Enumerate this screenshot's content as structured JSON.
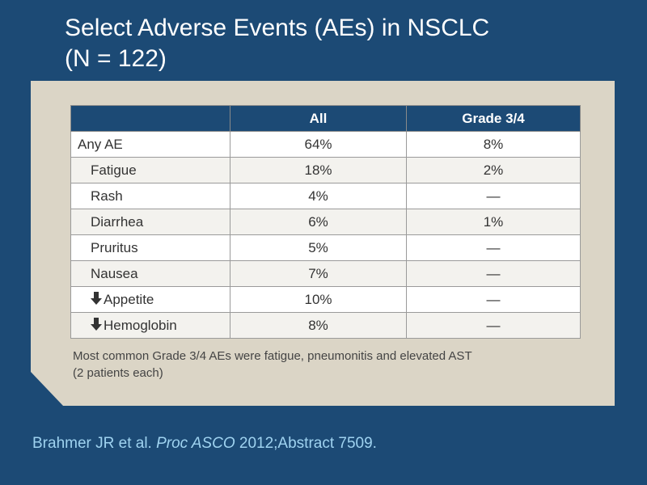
{
  "title": {
    "line1": "Select Adverse Events (AEs) in NSCLC",
    "line2": "(N = 122)"
  },
  "table": {
    "headers": [
      "",
      "All",
      "Grade 3/4"
    ],
    "rows": [
      {
        "label": "Any AE",
        "all": "64%",
        "grade34": "8%",
        "icon": ""
      },
      {
        "label": "Fatigue",
        "all": "18%",
        "grade34": "2%",
        "icon": ""
      },
      {
        "label": "Rash",
        "all": "4%",
        "grade34": "—",
        "icon": ""
      },
      {
        "label": "Diarrhea",
        "all": "6%",
        "grade34": "1%",
        "icon": ""
      },
      {
        "label": "Pruritus",
        "all": "5%",
        "grade34": "—",
        "icon": ""
      },
      {
        "label": "Nausea",
        "all": "7%",
        "grade34": "—",
        "icon": ""
      },
      {
        "label": "Appetite",
        "all": "10%",
        "grade34": "—",
        "icon": "decreased-arrow-icon"
      },
      {
        "label": "Hemoglobin",
        "all": "8%",
        "grade34": "—",
        "icon": "decreased-arrow-icon"
      }
    ]
  },
  "footnote": {
    "line1": "Most common Grade 3/4 AEs were fatigue, pneumonitis and elevated AST",
    "line2": "(2 patients each)"
  },
  "citation": {
    "authors": "Brahmer JR et al.",
    "journal": "Proc ASCO",
    "details": "2012;Abstract 7509."
  },
  "colors": {
    "background": "#1c4a75",
    "panel": "#dbd5c6",
    "header": "#1c4a75",
    "citation": "#9fd3f0"
  }
}
